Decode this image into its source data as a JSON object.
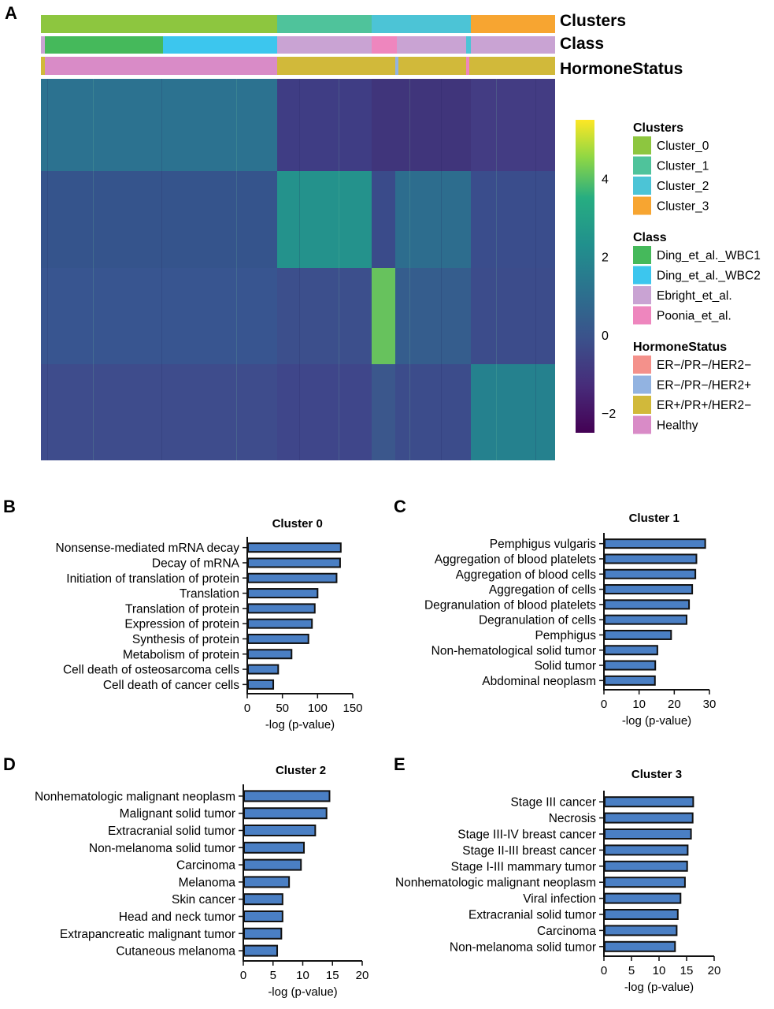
{
  "panels": {
    "A": {
      "letter": "A"
    },
    "B": {
      "letter": "B"
    },
    "C": {
      "letter": "C"
    },
    "D": {
      "letter": "D"
    },
    "E": {
      "letter": "E"
    }
  },
  "heatmap": {
    "annotation_rows": [
      "Clusters",
      "Class",
      "HormoneStatus"
    ],
    "colorbar_ticks": [
      4,
      2,
      0,
      -2
    ],
    "colorbar_range": [
      -2.5,
      5.5
    ],
    "legend": [
      {
        "title": "Clusters",
        "items": [
          {
            "label": "Cluster_0",
            "color": "#8DC63F"
          },
          {
            "label": "Cluster_1",
            "color": "#4FC39B"
          },
          {
            "label": "Cluster_2",
            "color": "#4CC4D6"
          },
          {
            "label": "Cluster_3",
            "color": "#F7A531"
          }
        ]
      },
      {
        "title": "Class",
        "items": [
          {
            "label": "Ding_et_al._WBC1",
            "color": "#45B95B"
          },
          {
            "label": "Ding_et_al._WBC2",
            "color": "#3CC6EE"
          },
          {
            "label": "Ebright_et_al.",
            "color": "#C9A3D3"
          },
          {
            "label": "Poonia_et_al.",
            "color": "#EE86BE"
          }
        ]
      },
      {
        "title": "HormoneStatus",
        "items": [
          {
            "label": "ER−/PR−/HER2−",
            "color": "#F4918B"
          },
          {
            "label": "ER−/PR−/HER2+",
            "color": "#92B3E1"
          },
          {
            "label": "ER+/PR+/HER2−",
            "color": "#D1B93A"
          },
          {
            "label": "Healthy",
            "color": "#D98BC7"
          }
        ]
      }
    ]
  },
  "chart_data": [
    {
      "panel": "B",
      "type": "bar",
      "orientation": "horizontal",
      "title": "Cluster 0",
      "xlabel": "-log (p-value)",
      "xlim": [
        0,
        150
      ],
      "xticks": [
        0,
        50,
        100,
        150
      ],
      "bar_color": "#4A7FC4",
      "categories": [
        "Nonsense-mediated mRNA decay",
        "Decay of mRNA",
        "Initiation of translation of protein",
        "Translation",
        "Translation of protein",
        "Expression of protein",
        "Synthesis of protein",
        "Metabolism of protein",
        "Cell death of osteosarcoma cells",
        "Cell death of cancer cells"
      ],
      "values": [
        133,
        132,
        127,
        100,
        96,
        92,
        87,
        63,
        44,
        37
      ]
    },
    {
      "panel": "C",
      "type": "bar",
      "orientation": "horizontal",
      "title": "Cluster 1",
      "xlabel": "-log (p-value)",
      "xlim": [
        0,
        30
      ],
      "xticks": [
        0,
        10,
        20,
        30
      ],
      "bar_color": "#4A7FC4",
      "categories": [
        "Pemphigus vulgaris",
        "Aggregation of blood platelets",
        "Aggregation of blood cells",
        "Aggregation of cells",
        "Degranulation of blood platelets",
        "Degranulation of cells",
        "Pemphigus",
        "Non-hematological solid tumor",
        "Solid tumor",
        "Abdominal neoplasm"
      ],
      "values": [
        28.8,
        26.3,
        26.0,
        25.1,
        24.2,
        23.5,
        19.1,
        15.2,
        14.6,
        14.5
      ]
    },
    {
      "panel": "D",
      "type": "bar",
      "orientation": "horizontal",
      "title": "Cluster 2",
      "xlabel": "-log (p-value)",
      "xlim": [
        0,
        20
      ],
      "xticks": [
        0,
        5,
        10,
        15,
        20
      ],
      "bar_color": "#4A7FC4",
      "categories": [
        "Nonhematologic malignant neoplasm",
        "Malignant solid tumor",
        "Extracranial solid tumor",
        "Non-melanoma solid tumor",
        "Carcinoma",
        "Melanoma",
        "Skin cancer",
        "Head and neck tumor",
        "Extrapancreatic malignant tumor",
        "Cutaneous melanoma"
      ],
      "values": [
        14.5,
        14.0,
        12.1,
        10.2,
        9.7,
        7.7,
        6.6,
        6.6,
        6.4,
        5.7
      ]
    },
    {
      "panel": "E",
      "type": "bar",
      "orientation": "horizontal",
      "title": "Cluster 3",
      "xlabel": "-log (p-value)",
      "xlim": [
        0,
        20
      ],
      "xticks": [
        0,
        5,
        10,
        15,
        20
      ],
      "bar_color": "#4A7FC4",
      "categories": [
        "Stage III cancer",
        "Necrosis",
        "Stage III-IV breast cancer",
        "Stage II-III breast cancer",
        "Stage I-III mammary tumor",
        "Nonhematologic malignant neoplasm",
        "Viral infection",
        "Extracranial solid tumor",
        "Carcinoma",
        "Non-melanoma solid tumor"
      ],
      "values": [
        16.2,
        16.1,
        15.8,
        15.2,
        15.1,
        14.7,
        13.9,
        13.4,
        13.2,
        12.9
      ]
    }
  ]
}
